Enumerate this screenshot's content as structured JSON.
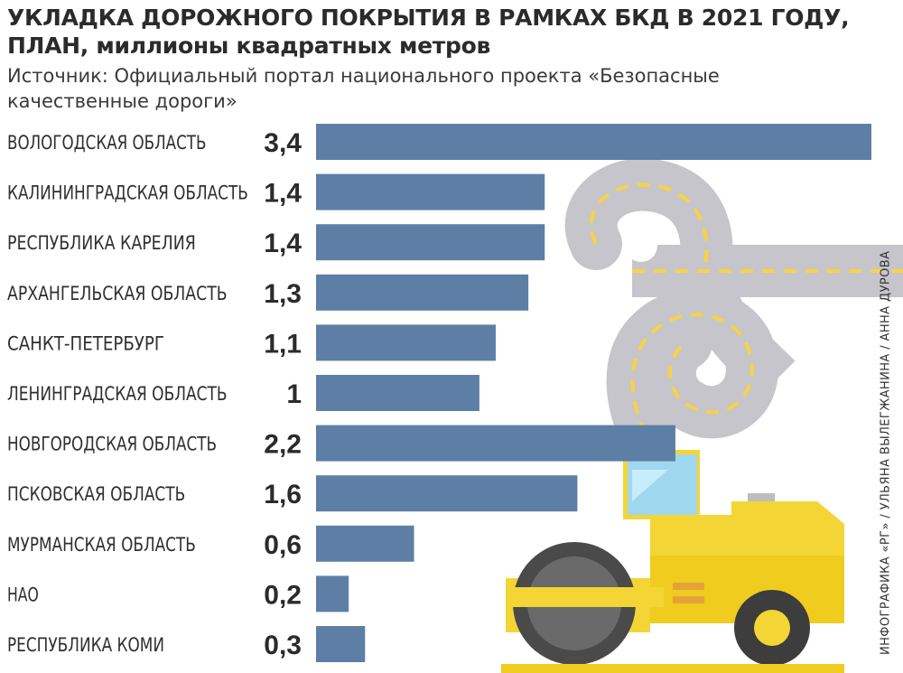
{
  "title_line1": "УКЛАДКА ДОРОЖНОГО ПОКРЫТИЯ В РАМКАХ БКД В 2021 ГОДУ,",
  "title_line2": "ПЛАН, миллионы квадратных метров",
  "source": "Источник:  Официальный портал национального проекта «Безопасные качественные дороги»",
  "credit": "ИНФОГРАФИКА «РГ» / УЛЬЯНА ВЫЛЕГЖАНИНА / АННА ДУРОВА",
  "colors": {
    "bar": "#5d7fa6",
    "road": "#c6c5cb",
    "road_mark": "#f6d442",
    "roller_body": "#f3d635",
    "roller_dark": "#4a4a4a"
  },
  "chart_data": {
    "type": "bar",
    "orientation": "horizontal",
    "categories": [
      "ВОЛОГОДСКАЯ ОБЛАСТЬ",
      "КАЛИНИНГРАДСКАЯ ОБЛАСТЬ",
      "РЕСПУБЛИКА КАРЕЛИЯ",
      "АРХАНГЕЛЬСКАЯ ОБЛАСТЬ",
      "САНКТ-ПЕТЕРБУРГ",
      "ЛЕНИНГРАДСКАЯ ОБЛАСТЬ",
      "НОВГОРОДСКАЯ ОБЛАСТЬ",
      "ПСКОВСКАЯ ОБЛАСТЬ",
      "МУРМАНСКАЯ ОБЛАСТЬ",
      "НАО",
      "РЕСПУБЛИКА КОМИ"
    ],
    "values": [
      3.4,
      1.4,
      1.4,
      1.3,
      1.1,
      1,
      2.2,
      1.6,
      0.6,
      0.2,
      0.3
    ],
    "labels": [
      "3,4",
      "1,4",
      "1,4",
      "1,3",
      "1,1",
      "1",
      "2,2",
      "1,6",
      "0,6",
      "0,2",
      "0,3"
    ],
    "xlim": [
      0,
      3.4
    ],
    "grid": false,
    "legend": "none"
  }
}
